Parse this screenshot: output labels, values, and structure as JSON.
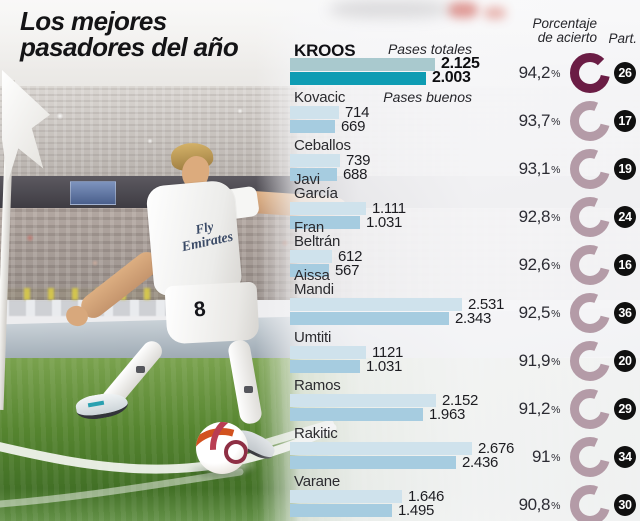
{
  "title": {
    "line1": "Los mejores",
    "line2": "pasadores del año"
  },
  "legend": {
    "total_label": "Pases totales",
    "good_label": "Pases buenos"
  },
  "columns": {
    "accuracy_line1": "Porcentaje",
    "accuracy_line2": "de acierto",
    "apps_label": "Part."
  },
  "photo": {
    "jersey_line1": "Fly",
    "jersey_line2": "Emirates",
    "shorts_number": "8"
  },
  "colors": {
    "bar_total": "#cfe2ec",
    "bar_good": "#a6cce0",
    "bar_total_highlight": "#a9c9ce",
    "bar_good_highlight": "#0e9cb3",
    "donut": "#b49ba7",
    "donut_highlight": "#6b1d45",
    "apps_badge": "#101010"
  },
  "chart_data": {
    "type": "bar",
    "orientation": "horizontal",
    "title": "Los mejores pasadores del año",
    "categories": [
      "Kroos",
      "Kovacic",
      "Ceballos",
      "Javi García",
      "Fran Beltrán",
      "Aissa Mandi",
      "Umtiti",
      "Ramos",
      "Rakitic",
      "Varane"
    ],
    "series": [
      {
        "name": "Pases totales",
        "values": [
          2125,
          714,
          739,
          1111,
          612,
          2531,
          1121,
          2152,
          2676,
          1646
        ]
      },
      {
        "name": "Pases buenos",
        "values": [
          2003,
          669,
          688,
          1031,
          567,
          2343,
          1031,
          1963,
          2436,
          1495
        ]
      },
      {
        "name": "Porcentaje de acierto",
        "values": [
          94.2,
          93.7,
          93.1,
          92.8,
          92.6,
          92.5,
          91.9,
          91.2,
          91,
          90.8
        ]
      },
      {
        "name": "Part.",
        "values": [
          26,
          17,
          19,
          24,
          16,
          36,
          20,
          29,
          34,
          30
        ]
      }
    ],
    "xlim": [
      0,
      2800
    ],
    "players": [
      {
        "name_lines": [
          "KROOS"
        ],
        "total": 2125,
        "good": 2003,
        "total_label": "2.125",
        "good_label": "2.003",
        "accuracy_label": "94,2",
        "apps": "26",
        "highlight": true
      },
      {
        "name_lines": [
          "Kovacic"
        ],
        "total": 714,
        "good": 669,
        "total_label": "714",
        "good_label": "669",
        "accuracy_label": "93,7",
        "apps": "17",
        "highlight": false
      },
      {
        "name_lines": [
          "Ceballos"
        ],
        "total": 739,
        "good": 688,
        "total_label": "739",
        "good_label": "688",
        "accuracy_label": "93,1",
        "apps": "19",
        "highlight": false
      },
      {
        "name_lines": [
          "Javi",
          "García"
        ],
        "total": 1111,
        "good": 1031,
        "total_label": "1.111",
        "good_label": "1.031",
        "accuracy_label": "92,8",
        "apps": "24",
        "highlight": false
      },
      {
        "name_lines": [
          "Fran",
          "Beltrán"
        ],
        "total": 612,
        "good": 567,
        "total_label": "612",
        "good_label": "567",
        "accuracy_label": "92,6",
        "apps": "16",
        "highlight": false
      },
      {
        "name_lines": [
          "Aissa",
          "Mandi"
        ],
        "total": 2531,
        "good": 2343,
        "total_label": "2.531",
        "good_label": "2.343",
        "accuracy_label": "92,5",
        "apps": "36",
        "highlight": false
      },
      {
        "name_lines": [
          "Umtiti"
        ],
        "total": 1121,
        "good": 1031,
        "total_label": "1121",
        "good_label": "1.031",
        "accuracy_label": "91,9",
        "apps": "20",
        "highlight": false
      },
      {
        "name_lines": [
          "Ramos"
        ],
        "total": 2152,
        "good": 1963,
        "total_label": "2.152",
        "good_label": "1.963",
        "accuracy_label": "91,2",
        "apps": "29",
        "highlight": false
      },
      {
        "name_lines": [
          "Rakitic"
        ],
        "total": 2676,
        "good": 2436,
        "total_label": "2.676",
        "good_label": "2.436",
        "accuracy_label": "91",
        "apps": "34",
        "highlight": false
      },
      {
        "name_lines": [
          "Varane"
        ],
        "total": 1646,
        "good": 1495,
        "total_label": "1.646",
        "good_label": "1.495",
        "accuracy_label": "90,8",
        "apps": "30",
        "highlight": false
      }
    ]
  }
}
